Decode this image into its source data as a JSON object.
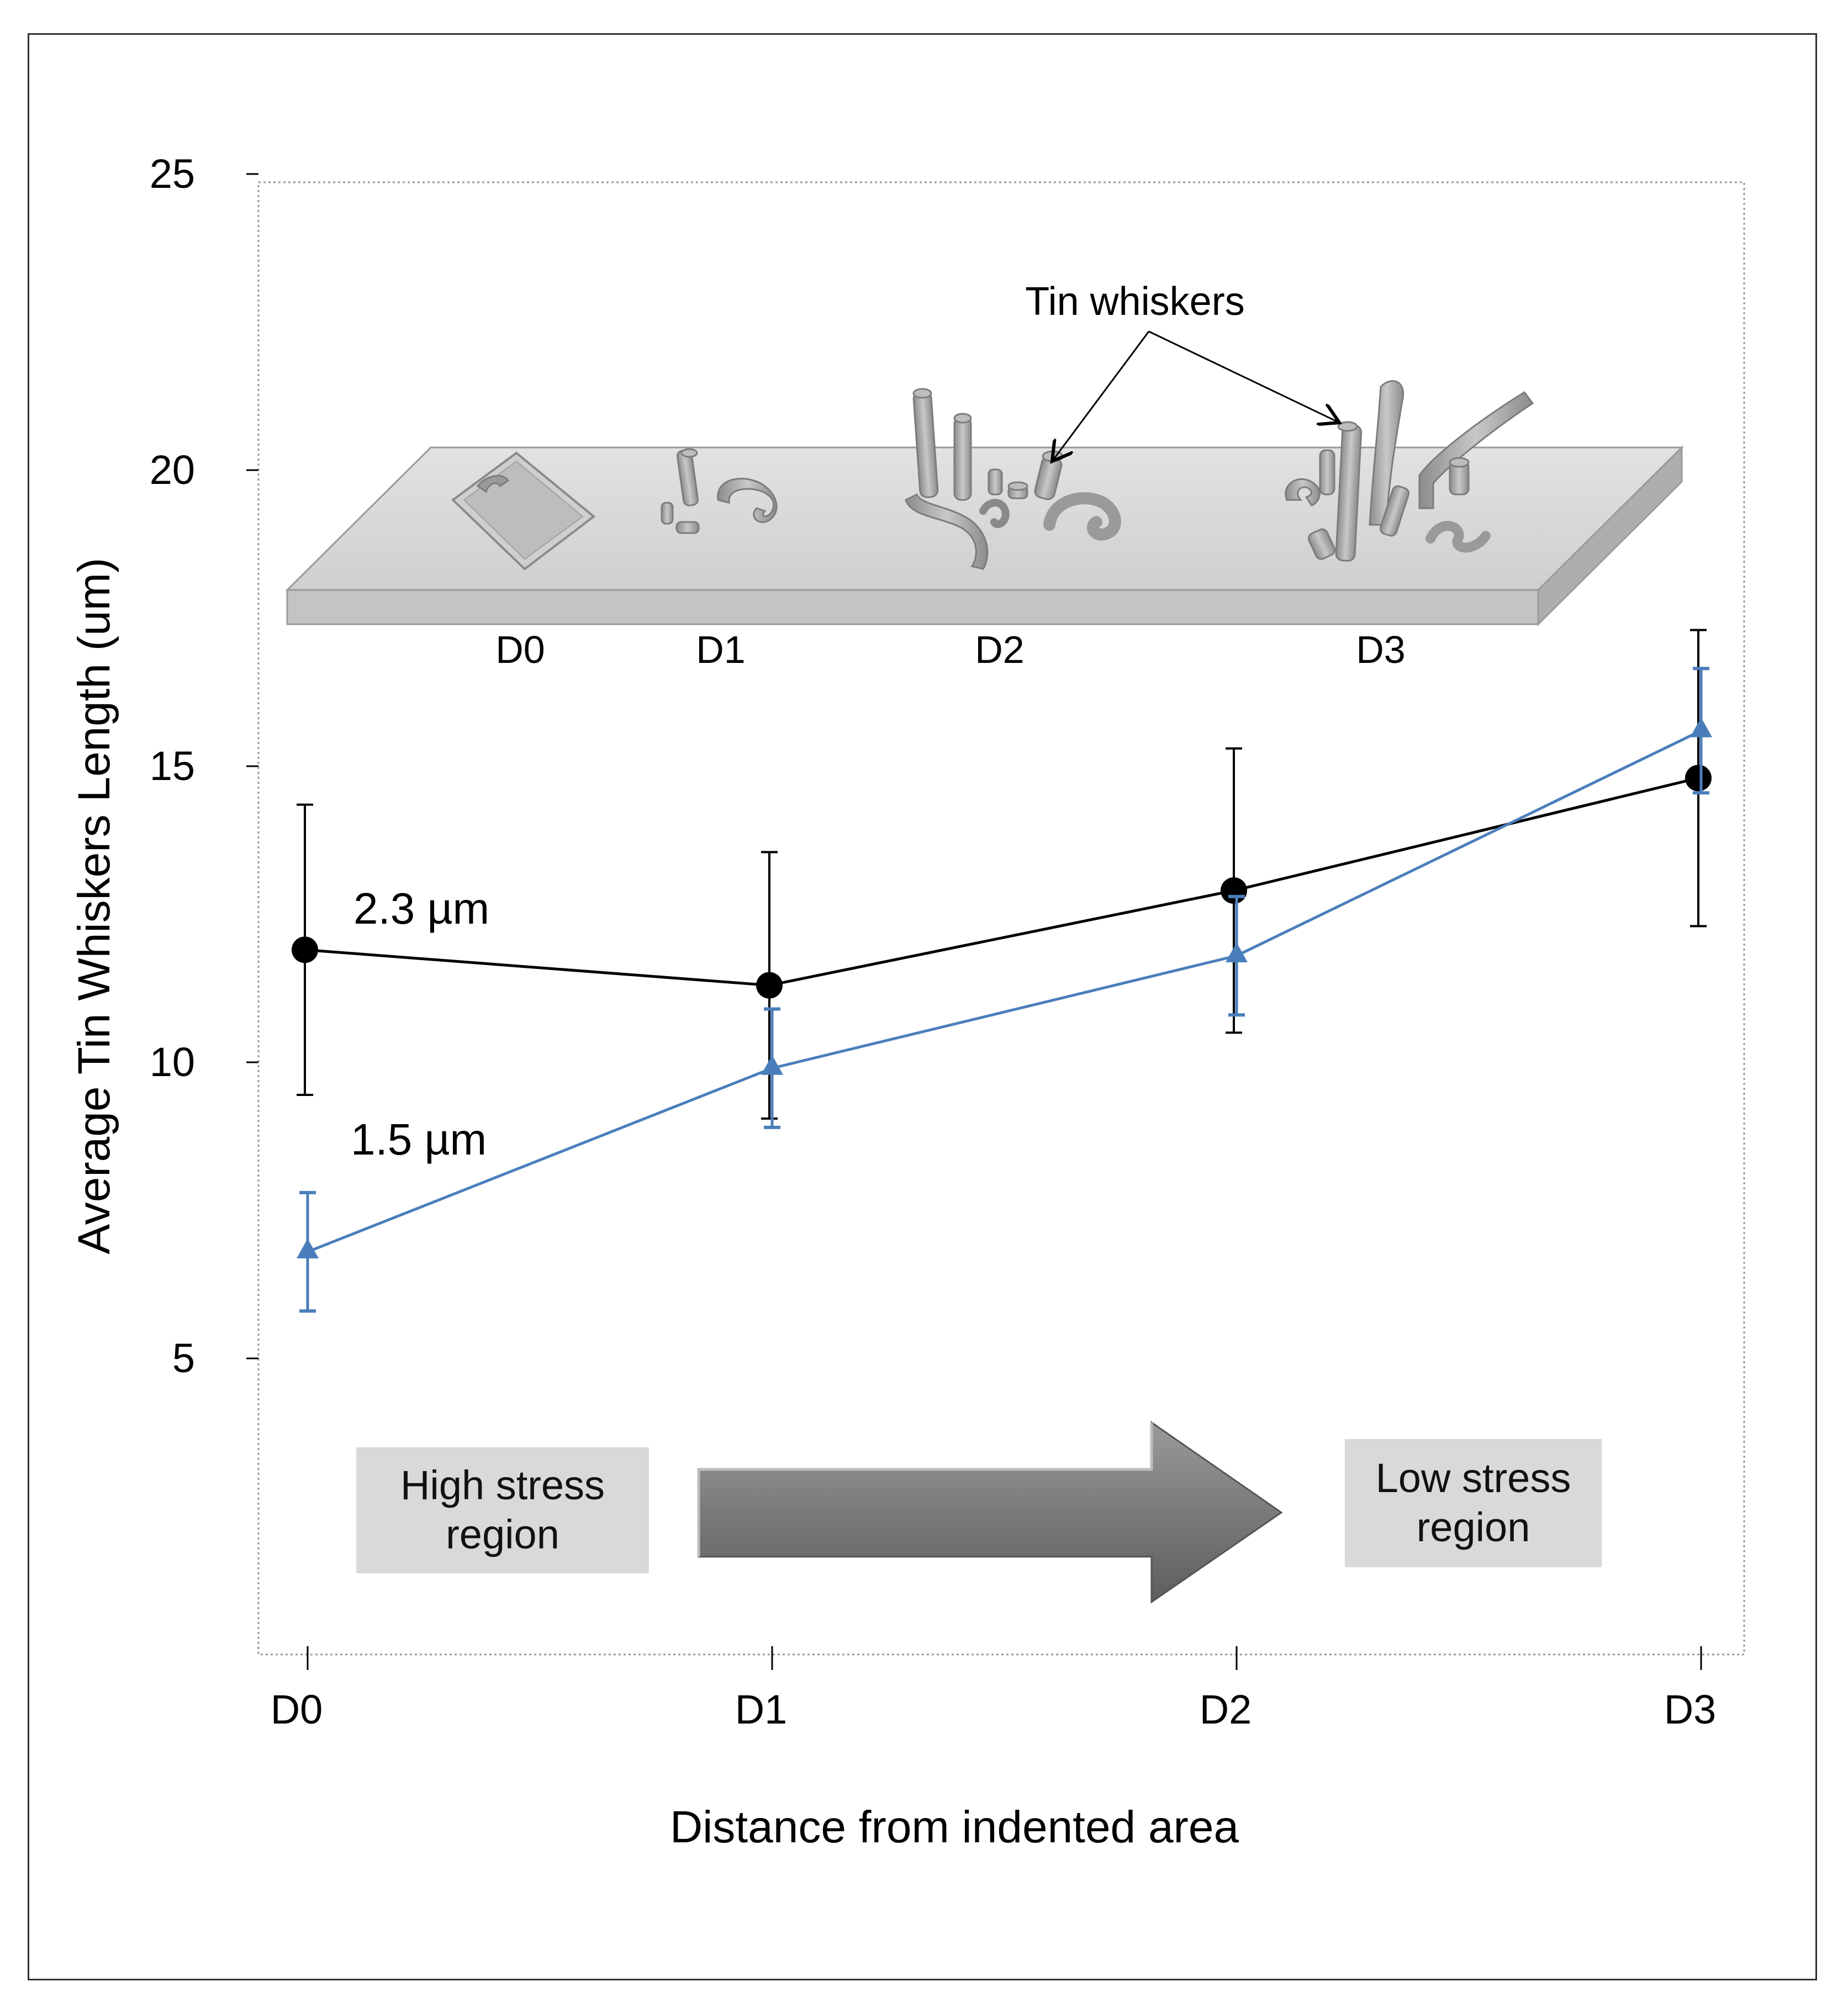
{
  "chart_data": {
    "type": "line",
    "title": "",
    "xlabel": "Distance from indented area",
    "ylabel": "Average Tin Whiskers Length (um)",
    "categories": [
      "D0",
      "D1",
      "D2",
      "D3"
    ],
    "ylim": [
      0,
      25
    ],
    "y_ticks": [
      5,
      10,
      15,
      20,
      25
    ],
    "grid": false,
    "series": [
      {
        "name": "2.3 µm",
        "label": "2.3 µm",
        "color": "#000000",
        "marker": "circle",
        "values": [
          11.9,
          11.3,
          12.9,
          14.8
        ],
        "error": [
          2.45,
          2.25,
          2.4,
          2.5
        ]
      },
      {
        "name": "1.5 µm",
        "label": "1.5 µm",
        "color": "#4a7ebb",
        "marker": "triangle",
        "values": [
          6.8,
          9.9,
          11.8,
          15.6
        ],
        "error": [
          1.0,
          1.0,
          1.0,
          1.05
        ]
      }
    ],
    "annotations": {
      "illustration_callout": "Tin whiskers",
      "illustration_labels": [
        "D0",
        "D1",
        "D2",
        "D3"
      ],
      "high_stress": "High stress region",
      "low_stress": "Low stress region"
    }
  },
  "colors": {
    "black_series": "#000000",
    "blue_series": "#4a7ebb",
    "plate_top": "#d6d6d6",
    "plate_side": "#bcbcbc",
    "arrow": "#7f7f7f"
  }
}
